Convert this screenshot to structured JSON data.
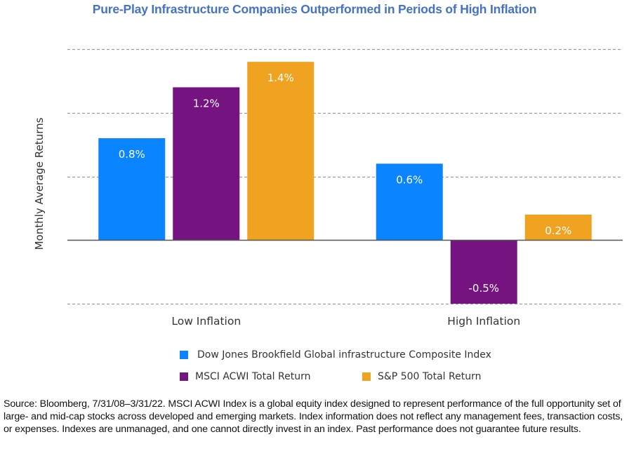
{
  "chart_data": {
    "type": "bar",
    "title": "Pure-Play Infrastructure Companies Outperformed in Periods of High Inflation",
    "xlabel": "",
    "ylabel": "Monthly Average Returns",
    "categories": [
      "Low Inflation",
      "High Inflation"
    ],
    "series": [
      {
        "name": "Dow Jones Brookfield Global infrastructure Composite Index",
        "color": "#0A84FF",
        "values": [
          0.8,
          0.6
        ],
        "labels": [
          "0.8%",
          "0.6%"
        ]
      },
      {
        "name": "MSCI ACWI Total Return",
        "color": "#751381",
        "values": [
          1.2,
          -0.5
        ],
        "labels": [
          "1.2%",
          "-0.5%"
        ]
      },
      {
        "name": "S&P 500 Total Return",
        "color": "#F0A321",
        "values": [
          1.4,
          0.2
        ],
        "labels": [
          "1.4%",
          "0.2%"
        ]
      }
    ],
    "ylim": [
      -0.5,
      1.5
    ],
    "gridlines": [
      -0.5,
      0.5,
      1.0,
      1.5
    ],
    "grid": true,
    "y_tick_labels_shown": false,
    "legend_position": "bottom"
  },
  "source_note": "Source: Bloomberg, 7/31/08–3/31/22. MSCI ACWI Index is a global equity index designed to represent performance of the full opportunity set of large- and mid-cap stocks across developed and emerging markets. Index information does not reflect any management fees, transaction costs, or expenses. Indexes are unmanaged, and one cannot directly invest in an index. Past performance does not guarantee future results."
}
